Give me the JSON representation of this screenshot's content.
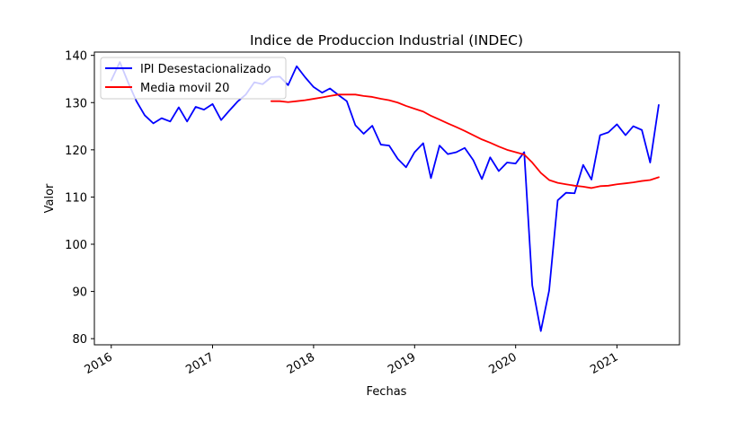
{
  "chart_data": {
    "type": "line",
    "title": "Indice de Produccion Industrial (INDEC)",
    "xlabel": "Fechas",
    "ylabel": "Valor",
    "xlim": [
      "2015-11-01",
      "2021-08-15"
    ],
    "ylim": [
      78.7,
      140.7
    ],
    "yticks": [
      80,
      90,
      100,
      110,
      120,
      130,
      140
    ],
    "xticks": [
      {
        "date": "2016-01-01",
        "label": "2016"
      },
      {
        "date": "2017-01-01",
        "label": "2017"
      },
      {
        "date": "2018-01-01",
        "label": "2018"
      },
      {
        "date": "2019-01-01",
        "label": "2019"
      },
      {
        "date": "2020-01-01",
        "label": "2020"
      },
      {
        "date": "2021-01-01",
        "label": "2021"
      }
    ],
    "grid": false,
    "legend_position": "top-left",
    "series": [
      {
        "name": "IPI Desestacionalizado",
        "color": "#0000ff",
        "points": [
          [
            "2016-01-01",
            134.7
          ],
          [
            "2016-02-01",
            138.6
          ],
          [
            "2016-03-01",
            134.4
          ],
          [
            "2016-04-01",
            130.3
          ],
          [
            "2016-05-01",
            127.3
          ],
          [
            "2016-06-01",
            125.6
          ],
          [
            "2016-07-01",
            126.7
          ],
          [
            "2016-08-01",
            126.0
          ],
          [
            "2016-09-01",
            129.0
          ],
          [
            "2016-10-01",
            126.0
          ],
          [
            "2016-11-01",
            129.1
          ],
          [
            "2016-12-01",
            128.5
          ],
          [
            "2017-01-01",
            129.7
          ],
          [
            "2017-02-01",
            126.3
          ],
          [
            "2017-03-01",
            128.2
          ],
          [
            "2017-04-01",
            130.2
          ],
          [
            "2017-05-01",
            131.7
          ],
          [
            "2017-06-01",
            134.3
          ],
          [
            "2017-07-01",
            133.9
          ],
          [
            "2017-08-01",
            135.4
          ],
          [
            "2017-09-01",
            135.5
          ],
          [
            "2017-10-01",
            133.7
          ],
          [
            "2017-11-01",
            137.7
          ],
          [
            "2017-12-01",
            135.4
          ],
          [
            "2018-01-01",
            133.3
          ],
          [
            "2018-02-01",
            132.1
          ],
          [
            "2018-03-01",
            133.0
          ],
          [
            "2018-04-01",
            131.6
          ],
          [
            "2018-05-01",
            130.3
          ],
          [
            "2018-06-01",
            125.2
          ],
          [
            "2018-07-01",
            123.4
          ],
          [
            "2018-08-01",
            125.1
          ],
          [
            "2018-09-01",
            121.1
          ],
          [
            "2018-10-01",
            120.9
          ],
          [
            "2018-11-01",
            118.1
          ],
          [
            "2018-12-01",
            116.3
          ],
          [
            "2019-01-01",
            119.5
          ],
          [
            "2019-02-01",
            121.4
          ],
          [
            "2019-03-01",
            114.0
          ],
          [
            "2019-04-01",
            120.9
          ],
          [
            "2019-05-01",
            119.1
          ],
          [
            "2019-06-01",
            119.5
          ],
          [
            "2019-07-01",
            120.4
          ],
          [
            "2019-08-01",
            117.8
          ],
          [
            "2019-09-01",
            113.8
          ],
          [
            "2019-10-01",
            118.4
          ],
          [
            "2019-11-01",
            115.5
          ],
          [
            "2019-12-01",
            117.3
          ],
          [
            "2020-01-01",
            117.1
          ],
          [
            "2020-02-01",
            119.5
          ],
          [
            "2020-03-01",
            91.3
          ],
          [
            "2020-04-01",
            81.6
          ],
          [
            "2020-05-01",
            90.2
          ],
          [
            "2020-06-01",
            109.3
          ],
          [
            "2020-07-01",
            110.9
          ],
          [
            "2020-08-01",
            110.8
          ],
          [
            "2020-09-01",
            116.8
          ],
          [
            "2020-10-01",
            113.7
          ],
          [
            "2020-11-01",
            123.1
          ],
          [
            "2020-12-01",
            123.7
          ],
          [
            "2021-01-01",
            125.4
          ],
          [
            "2021-02-01",
            123.1
          ],
          [
            "2021-03-01",
            125.0
          ],
          [
            "2021-04-01",
            124.2
          ],
          [
            "2021-05-01",
            117.3
          ],
          [
            "2021-06-01",
            129.5
          ]
        ]
      },
      {
        "name": "Media movil 20",
        "color": "#ff0000",
        "points": [
          [
            "2017-08-01",
            130.3
          ],
          [
            "2017-09-01",
            130.3
          ],
          [
            "2017-10-01",
            130.1
          ],
          [
            "2017-11-01",
            130.3
          ],
          [
            "2017-12-01",
            130.5
          ],
          [
            "2018-01-01",
            130.8
          ],
          [
            "2018-02-01",
            131.1
          ],
          [
            "2018-03-01",
            131.4
          ],
          [
            "2018-04-01",
            131.7
          ],
          [
            "2018-05-01",
            131.7
          ],
          [
            "2018-06-01",
            131.7
          ],
          [
            "2018-07-01",
            131.4
          ],
          [
            "2018-08-01",
            131.2
          ],
          [
            "2018-09-01",
            130.8
          ],
          [
            "2018-10-01",
            130.5
          ],
          [
            "2018-11-01",
            130.0
          ],
          [
            "2018-12-01",
            129.3
          ],
          [
            "2019-01-01",
            128.7
          ],
          [
            "2019-02-01",
            128.1
          ],
          [
            "2019-03-01",
            127.2
          ],
          [
            "2019-04-01",
            126.4
          ],
          [
            "2019-05-01",
            125.6
          ],
          [
            "2019-06-01",
            124.8
          ],
          [
            "2019-07-01",
            124.0
          ],
          [
            "2019-08-01",
            123.1
          ],
          [
            "2019-09-01",
            122.2
          ],
          [
            "2019-10-01",
            121.5
          ],
          [
            "2019-11-01",
            120.7
          ],
          [
            "2019-12-01",
            120.0
          ],
          [
            "2020-01-01",
            119.5
          ],
          [
            "2020-02-01",
            119.0
          ],
          [
            "2020-03-01",
            117.3
          ],
          [
            "2020-04-01",
            115.1
          ],
          [
            "2020-05-01",
            113.6
          ],
          [
            "2020-06-01",
            113.0
          ],
          [
            "2020-07-01",
            112.7
          ],
          [
            "2020-08-01",
            112.4
          ],
          [
            "2020-09-01",
            112.2
          ],
          [
            "2020-10-01",
            111.9
          ],
          [
            "2020-11-01",
            112.3
          ],
          [
            "2020-12-01",
            112.4
          ],
          [
            "2021-01-01",
            112.7
          ],
          [
            "2021-02-01",
            112.9
          ],
          [
            "2021-03-01",
            113.1
          ],
          [
            "2021-04-01",
            113.4
          ],
          [
            "2021-05-01",
            113.6
          ],
          [
            "2021-06-01",
            114.2
          ]
        ]
      }
    ]
  }
}
